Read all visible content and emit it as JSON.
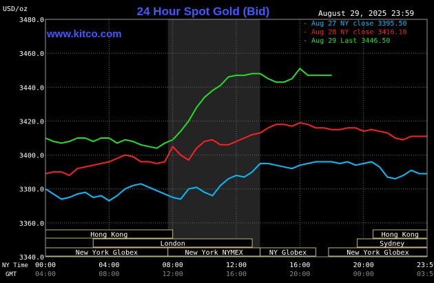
{
  "chart_data": {
    "type": "line",
    "title": "24 Hour Spot Gold (Bid)",
    "ylabel": "USD/oz",
    "site": "www.kitco.com",
    "timestamp": "August 29, 2025 23:59",
    "ylim": [
      3340,
      3480
    ],
    "yticks": [
      "3480.0",
      "3460.0",
      "3440.0",
      "3420.0",
      "3400.0",
      "3380.0",
      "3360.0",
      "3340.0"
    ],
    "ytick_values": [
      3480,
      3460,
      3440,
      3420,
      3400,
      3380,
      3360,
      3340
    ],
    "xlim_hours": [
      0,
      24
    ],
    "x_row_labels": {
      "ny": "NY Time",
      "gmt": "GMT"
    },
    "xticks": [
      {
        "h": 0,
        "ny": "00:00",
        "gmt": "04:00"
      },
      {
        "h": 4,
        "ny": "04:00",
        "gmt": "08:00"
      },
      {
        "h": 8,
        "ny": "08:00",
        "gmt": "12:00"
      },
      {
        "h": 12,
        "ny": "12:00",
        "gmt": "16:00"
      },
      {
        "h": 16,
        "ny": "16:00",
        "gmt": "20:00"
      },
      {
        "h": 20,
        "ny": "20:00",
        "gmt": "00:00"
      },
      {
        "h": 24,
        "ny": "23:59",
        "gmt": "03:59"
      }
    ],
    "legend": [
      {
        "label": "Aug 27 NY close 3395.50",
        "color": "#00bfff"
      },
      {
        "label": "Aug 28 NY close 3416.10",
        "color": "#ff2020"
      },
      {
        "label": "Aug 29 Last 3446.50",
        "color": "#22e022"
      }
    ],
    "shaded_hours": [
      7.7,
      13.5
    ],
    "series": [
      {
        "name": "Aug 27",
        "color": "#00bfff",
        "x": [
          0,
          0.5,
          1,
          1.5,
          2,
          2.5,
          3,
          3.5,
          4,
          4.5,
          5,
          5.5,
          6,
          6.5,
          7,
          7.5,
          8,
          8.5,
          9,
          9.5,
          10,
          10.5,
          11,
          11.5,
          12,
          12.5,
          13,
          13.5,
          14,
          14.5,
          15,
          15.5,
          16,
          16.5,
          17,
          17.5,
          18,
          18.5,
          19,
          19.5,
          20,
          20.5,
          21,
          21.5,
          22,
          22.5,
          23,
          23.5,
          24
        ],
        "values": [
          3380,
          3377,
          3374,
          3375,
          3377,
          3378,
          3375,
          3376,
          3373,
          3376,
          3380,
          3382,
          3383,
          3381,
          3379,
          3377,
          3375,
          3374,
          3380,
          3381,
          3378,
          3376,
          3382,
          3386,
          3388,
          3387,
          3390,
          3395,
          3395,
          3394,
          3393,
          3392,
          3394,
          3395,
          3396,
          3396,
          3396,
          3395,
          3396,
          3394,
          3395,
          3396,
          3393,
          3387,
          3386,
          3388,
          3391,
          3389,
          3389
        ]
      },
      {
        "name": "Aug 28",
        "color": "#ff2020",
        "x": [
          0,
          0.5,
          1,
          1.5,
          2,
          2.5,
          3,
          3.5,
          4,
          4.5,
          5,
          5.5,
          6,
          6.5,
          7,
          7.5,
          8,
          8.5,
          9,
          9.5,
          10,
          10.5,
          11,
          11.5,
          12,
          12.5,
          13,
          13.5,
          14,
          14.5,
          15,
          15.5,
          16,
          16.5,
          17,
          17.5,
          18,
          18.5,
          19,
          19.5,
          20,
          20.5,
          21,
          21.5,
          22,
          22.5,
          23,
          23.5,
          24
        ],
        "values": [
          3389,
          3390,
          3390,
          3388,
          3392,
          3393,
          3394,
          3395,
          3396,
          3398,
          3400,
          3399,
          3396,
          3396,
          3395,
          3396,
          3405,
          3400,
          3397,
          3404,
          3408,
          3409,
          3406,
          3406,
          3408,
          3410,
          3412,
          3413,
          3416,
          3418,
          3418,
          3417,
          3419,
          3418,
          3416,
          3416,
          3415,
          3415,
          3416,
          3416,
          3414,
          3415,
          3414,
          3413,
          3410,
          3409,
          3411,
          3411,
          3411
        ]
      },
      {
        "name": "Aug 29",
        "color": "#22e022",
        "x": [
          0,
          0.5,
          1,
          1.5,
          2,
          2.5,
          3,
          3.5,
          4,
          4.5,
          5,
          5.5,
          6,
          6.5,
          7,
          7.5,
          8,
          8.5,
          9,
          9.5,
          10,
          10.5,
          11,
          11.5,
          12,
          12.5,
          13,
          13.5,
          14,
          14.5,
          15,
          15.5,
          16,
          16.5,
          17,
          17.5,
          18
        ],
        "values": [
          3410,
          3408,
          3407,
          3408,
          3410,
          3410,
          3408,
          3410,
          3410,
          3407,
          3409,
          3408,
          3406,
          3405,
          3404,
          3407,
          3409,
          3414,
          3420,
          3428,
          3434,
          3438,
          3441,
          3446,
          3447,
          3447,
          3448,
          3448,
          3445,
          3443,
          3443,
          3445,
          3451,
          3447,
          3447,
          3447,
          3447
        ]
      }
    ],
    "sessions": [
      {
        "label": "Hong Kong",
        "start": 0,
        "end": 8,
        "row": 0
      },
      {
        "label": "Hong Kong",
        "start": 20.6,
        "end": 24,
        "row": 0
      },
      {
        "label": "London",
        "start": 3,
        "end": 13,
        "row": 1
      },
      {
        "label": "Sydney",
        "start": 19.6,
        "end": 24,
        "row": 1
      },
      {
        "label": "New York Globex",
        "start": 0,
        "end": 7.7,
        "row": 2
      },
      {
        "label": "New York NYMEX",
        "start": 7.7,
        "end": 13.5,
        "row": 2
      },
      {
        "label": "NY Globex",
        "start": 13.5,
        "end": 17,
        "row": 2
      },
      {
        "label": "New York Globex",
        "start": 17.8,
        "end": 24,
        "row": 2
      }
    ]
  }
}
